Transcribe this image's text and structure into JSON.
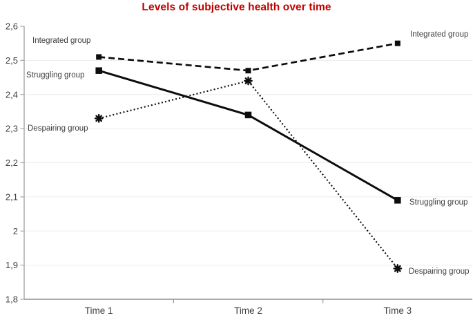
{
  "title": {
    "text": "Levels of subjective health over time",
    "color": "#C00000"
  },
  "chart_data": {
    "type": "line",
    "categories": [
      "Time 1",
      "Time 2",
      "Time 3"
    ],
    "series": [
      {
        "name": "Integrated group",
        "values": [
          2.51,
          2.47,
          2.55
        ],
        "line_style": "dashed",
        "marker": "square",
        "color": "#0d0d0d"
      },
      {
        "name": "Struggling group",
        "values": [
          2.47,
          2.34,
          2.09
        ],
        "line_style": "solid",
        "marker": "square",
        "color": "#0d0d0d"
      },
      {
        "name": "Despairing group",
        "values": [
          2.33,
          2.44,
          1.89
        ],
        "line_style": "dotted",
        "marker": "asterisk",
        "color": "#0d0d0d"
      }
    ],
    "title": "Levels of subjective health over time",
    "xlabel": "",
    "ylabel": "",
    "ylim": [
      1.8,
      2.6
    ],
    "y_tick_step": 0.1,
    "y_tick_labels": [
      "2,6",
      "2,5",
      "2,4",
      "2,3",
      "2,2",
      "2,1",
      "2",
      "1,9",
      "1,8"
    ],
    "grid": true,
    "legend_position": "inline-annotations-both-ends",
    "axis_color": "#a6a6a6",
    "gridline_color": "#ececec",
    "tick_label_color": "#404040",
    "annotation_label_color": "#3f3f3f"
  }
}
